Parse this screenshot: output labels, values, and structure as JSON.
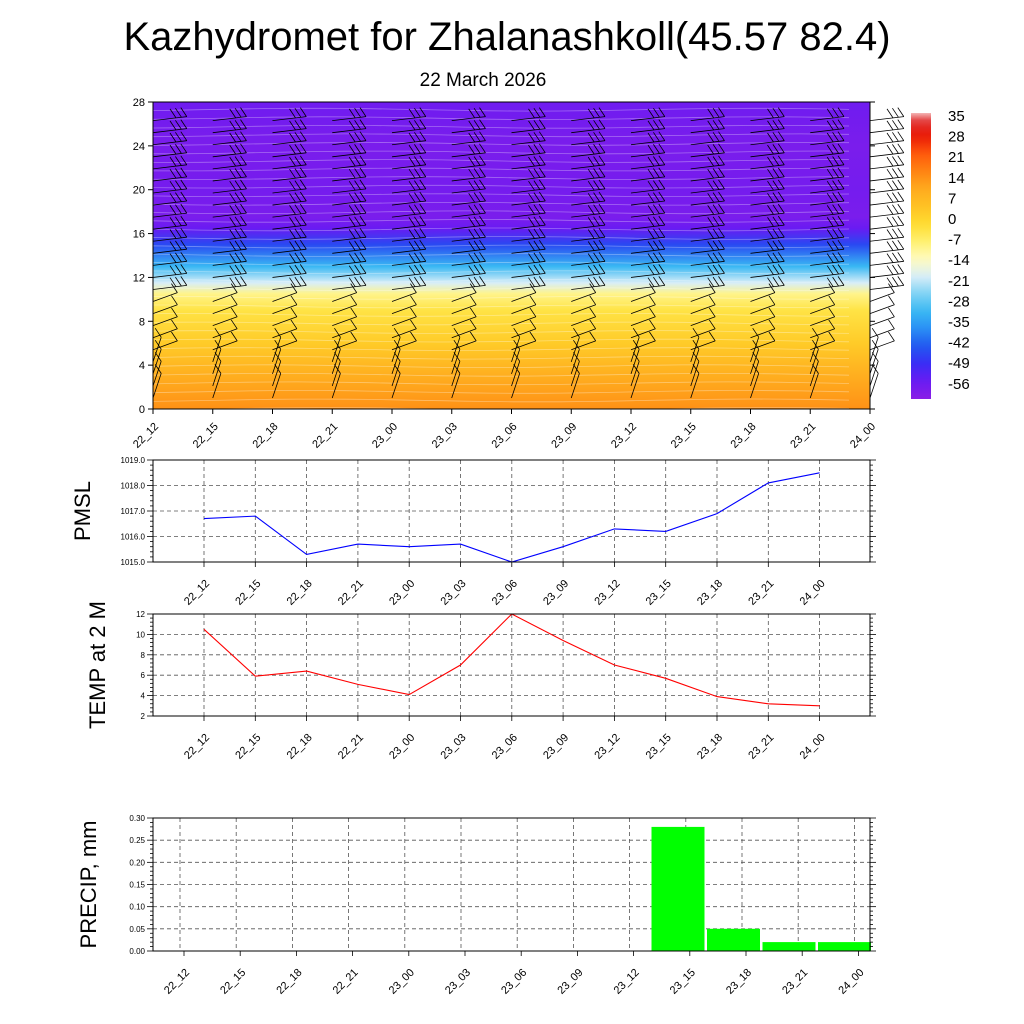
{
  "title": "Kazhydromet for Zhalanashkoll(45.57 82.4)",
  "subtitle": "22 March 2026",
  "chart_data": [
    {
      "type": "heatmap",
      "name": "vertical-section",
      "x": [
        "22_12",
        "22_15",
        "22_18",
        "22_21",
        "23_00",
        "23_03",
        "23_06",
        "23_09",
        "23_12",
        "23_15",
        "23_18",
        "23_21",
        "24_00"
      ],
      "yticks": [
        0,
        4,
        8,
        12,
        16,
        20,
        24,
        28
      ],
      "ylim": [
        0,
        28
      ],
      "colorbar": {
        "labels": [
          "35",
          "28",
          "21",
          "14",
          "7",
          "0",
          "-7",
          "-14",
          "-21",
          "-28",
          "-35",
          "-42",
          "-49",
          "-56"
        ],
        "range": [
          -60,
          38
        ]
      },
      "profile": [
        {
          "y": 0,
          "value": 16
        },
        {
          "y": 3,
          "value": 11
        },
        {
          "y": 6,
          "value": 4
        },
        {
          "y": 9,
          "value": -2
        },
        {
          "y": 10.5,
          "value": -8
        },
        {
          "y": 11.5,
          "value": -18
        },
        {
          "y": 13,
          "value": -30
        },
        {
          "y": 15,
          "value": -44
        },
        {
          "y": 16.5,
          "value": -54
        },
        {
          "y": 17.5,
          "value": -57
        },
        {
          "y": 20,
          "value": -56
        },
        {
          "y": 24,
          "value": -57
        },
        {
          "y": 28,
          "value": -55
        }
      ]
    },
    {
      "type": "line",
      "name": "pmsl",
      "ylabel": "PMSL",
      "categories": [
        "22_12",
        "22_15",
        "22_18",
        "22_21",
        "23_00",
        "23_03",
        "23_06",
        "23_09",
        "23_12",
        "23_15",
        "23_18",
        "23_21",
        "24_00"
      ],
      "values": [
        1016.7,
        1016.8,
        1015.3,
        1015.7,
        1015.6,
        1015.7,
        1015.0,
        1015.6,
        1016.3,
        1016.2,
        1016.9,
        1018.1,
        1018.5
      ],
      "ylim": [
        1015.0,
        1019.0
      ],
      "yticks": [
        "1015.0",
        "1016.0",
        "1017.0",
        "1018.0",
        "1019.0"
      ],
      "color": "#0000ff"
    },
    {
      "type": "line",
      "name": "temp2m",
      "ylabel": "TEMP at 2 M",
      "categories": [
        "22_12",
        "22_15",
        "22_18",
        "22_21",
        "23_00",
        "23_03",
        "23_06",
        "23_09",
        "23_12",
        "23_15",
        "23_18",
        "23_21",
        "24_00"
      ],
      "values": [
        10.5,
        5.9,
        6.4,
        5.1,
        4.1,
        7.0,
        12.0,
        9.4,
        7.0,
        5.7,
        3.9,
        3.2,
        3.0
      ],
      "ylim": [
        2,
        12
      ],
      "yticks": [
        "2",
        "4",
        "6",
        "8",
        "10",
        "12"
      ],
      "color": "#ff0000"
    },
    {
      "type": "bar",
      "name": "precip",
      "ylabel": "PRECIP, mm",
      "categories": [
        "22_12",
        "22_15",
        "22_18",
        "22_21",
        "23_00",
        "23_03",
        "23_06",
        "23_09",
        "23_12",
        "23_15",
        "23_18",
        "23_21",
        "24_00"
      ],
      "values": [
        0,
        0,
        0,
        0,
        0,
        0,
        0,
        0,
        0,
        0.28,
        0.05,
        0.02,
        0.02
      ],
      "ylim": [
        0,
        0.3
      ],
      "yticks": [
        "0.00",
        "0.05",
        "0.10",
        "0.15",
        "0.20",
        "0.25",
        "0.30"
      ],
      "color": "#00ff00"
    }
  ]
}
